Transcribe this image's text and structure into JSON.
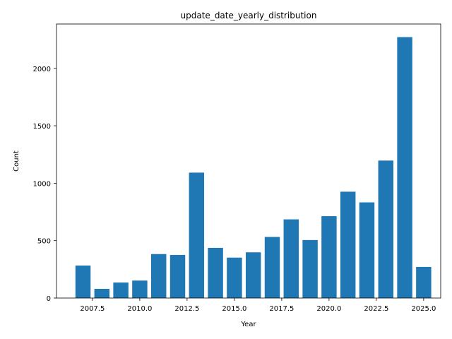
{
  "chart_data": {
    "type": "bar",
    "title": "update_date_yearly_distribution",
    "xlabel": "Year",
    "ylabel": "Count",
    "x": [
      2007,
      2008,
      2009,
      2010,
      2011,
      2012,
      2013,
      2014,
      2015,
      2016,
      2017,
      2018,
      2019,
      2020,
      2021,
      2022,
      2023,
      2024,
      2025
    ],
    "values": [
      283,
      80,
      135,
      152,
      383,
      375,
      1092,
      437,
      352,
      398,
      532,
      685,
      505,
      713,
      926,
      833,
      1197,
      2272,
      271
    ],
    "xlim": [
      2005.6,
      2025.9
    ],
    "ylim": [
      0,
      2386
    ],
    "xticks": [
      "2007.5",
      "2010.0",
      "2012.5",
      "2015.0",
      "2017.5",
      "2020.0",
      "2022.5",
      "2025.0"
    ],
    "yticks": [
      "0",
      "500",
      "1000",
      "1500",
      "2000"
    ],
    "bar_color": "#1f77b4",
    "grid": false,
    "legend": "none"
  }
}
